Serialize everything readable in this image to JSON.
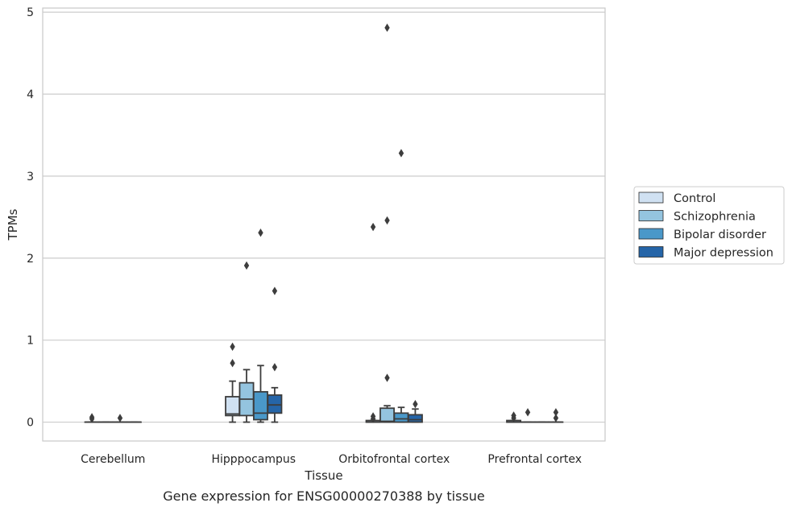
{
  "chart_data": {
    "type": "box",
    "title": "",
    "caption": "Gene expression for ENSG00000270388 by tissue",
    "xlabel": "Tissue",
    "ylabel": "TPMs",
    "ylim": [
      -0.23,
      5.05
    ],
    "yticks": [
      0,
      1,
      2,
      3,
      4,
      5
    ],
    "grid": "horizontal",
    "legend_position": "right",
    "categories": [
      "Cerebellum",
      "Hipppocampus",
      "Orbitofrontal cortex",
      "Prefrontal cortex"
    ],
    "series": [
      {
        "name": "Control",
        "color": "#d0e1f2",
        "boxes": [
          {
            "category": "Cerebellum",
            "whislo": 0,
            "q1": 0,
            "med": 0,
            "q3": 0,
            "whishi": 0,
            "fliers": [
              0.04,
              0.06
            ]
          },
          {
            "category": "Hipppocampus",
            "whislo": 0,
            "q1": 0.08,
            "med": 0.1,
            "q3": 0.31,
            "whishi": 0.5,
            "fliers": [
              0.72,
              0.92
            ]
          },
          {
            "category": "Orbitofrontal cortex",
            "whislo": 0,
            "q1": 0,
            "med": 0,
            "q3": 0.02,
            "whishi": 0.02,
            "fliers": [
              0.04,
              0.07,
              2.38
            ]
          },
          {
            "category": "Prefrontal cortex",
            "whislo": 0,
            "q1": 0,
            "med": 0,
            "q3": 0.02,
            "whishi": 0.02,
            "fliers": [
              0.05,
              0.08
            ]
          }
        ]
      },
      {
        "name": "Schizophrenia",
        "color": "#94c4df",
        "boxes": [
          {
            "category": "Cerebellum",
            "whislo": 0,
            "q1": 0,
            "med": 0,
            "q3": 0,
            "whishi": 0,
            "fliers": []
          },
          {
            "category": "Hipppocampus",
            "whislo": 0,
            "q1": 0.08,
            "med": 0.28,
            "q3": 0.48,
            "whishi": 0.64,
            "fliers": [
              1.91
            ]
          },
          {
            "category": "Orbitofrontal cortex",
            "whislo": 0,
            "q1": 0,
            "med": 0.01,
            "q3": 0.17,
            "whishi": 0.2,
            "fliers": [
              0.54,
              2.46,
              4.81
            ]
          },
          {
            "category": "Prefrontal cortex",
            "whislo": 0,
            "q1": 0,
            "med": 0,
            "q3": 0,
            "whishi": 0,
            "fliers": [
              0.12
            ]
          }
        ]
      },
      {
        "name": "Bipolar disorder",
        "color": "#4a98c9",
        "boxes": [
          {
            "category": "Cerebellum",
            "whislo": 0,
            "q1": 0,
            "med": 0,
            "q3": 0,
            "whishi": 0,
            "fliers": [
              0.05
            ]
          },
          {
            "category": "Hipppocampus",
            "whislo": 0,
            "q1": 0.03,
            "med": 0.11,
            "q3": 0.37,
            "whishi": 0.69,
            "fliers": [
              2.31
            ]
          },
          {
            "category": "Orbitofrontal cortex",
            "whislo": 0,
            "q1": 0,
            "med": 0.04,
            "q3": 0.11,
            "whishi": 0.18,
            "fliers": [
              3.28
            ]
          },
          {
            "category": "Prefrontal cortex",
            "whislo": 0,
            "q1": 0,
            "med": 0,
            "q3": 0,
            "whishi": 0,
            "fliers": []
          }
        ]
      },
      {
        "name": "Major depression",
        "color": "#2565a8",
        "boxes": [
          {
            "category": "Cerebellum",
            "whislo": 0,
            "q1": 0,
            "med": 0,
            "q3": 0,
            "whishi": 0,
            "fliers": []
          },
          {
            "category": "Hipppocampus",
            "whislo": 0,
            "q1": 0.11,
            "med": 0.21,
            "q3": 0.33,
            "whishi": 0.42,
            "fliers": [
              0.67,
              1.6
            ]
          },
          {
            "category": "Orbitofrontal cortex",
            "whislo": 0,
            "q1": 0,
            "med": 0.03,
            "q3": 0.09,
            "whishi": 0.16,
            "fliers": [
              0.22
            ]
          },
          {
            "category": "Prefrontal cortex",
            "whislo": 0,
            "q1": 0,
            "med": 0,
            "q3": 0,
            "whishi": 0,
            "fliers": [
              0.05,
              0.12
            ]
          }
        ]
      }
    ]
  },
  "style": {
    "grid_color": "#cccccc",
    "frame_color": "#cccccc",
    "line_color": "#3d3d3d",
    "flier_color": "#3d3d3d"
  }
}
